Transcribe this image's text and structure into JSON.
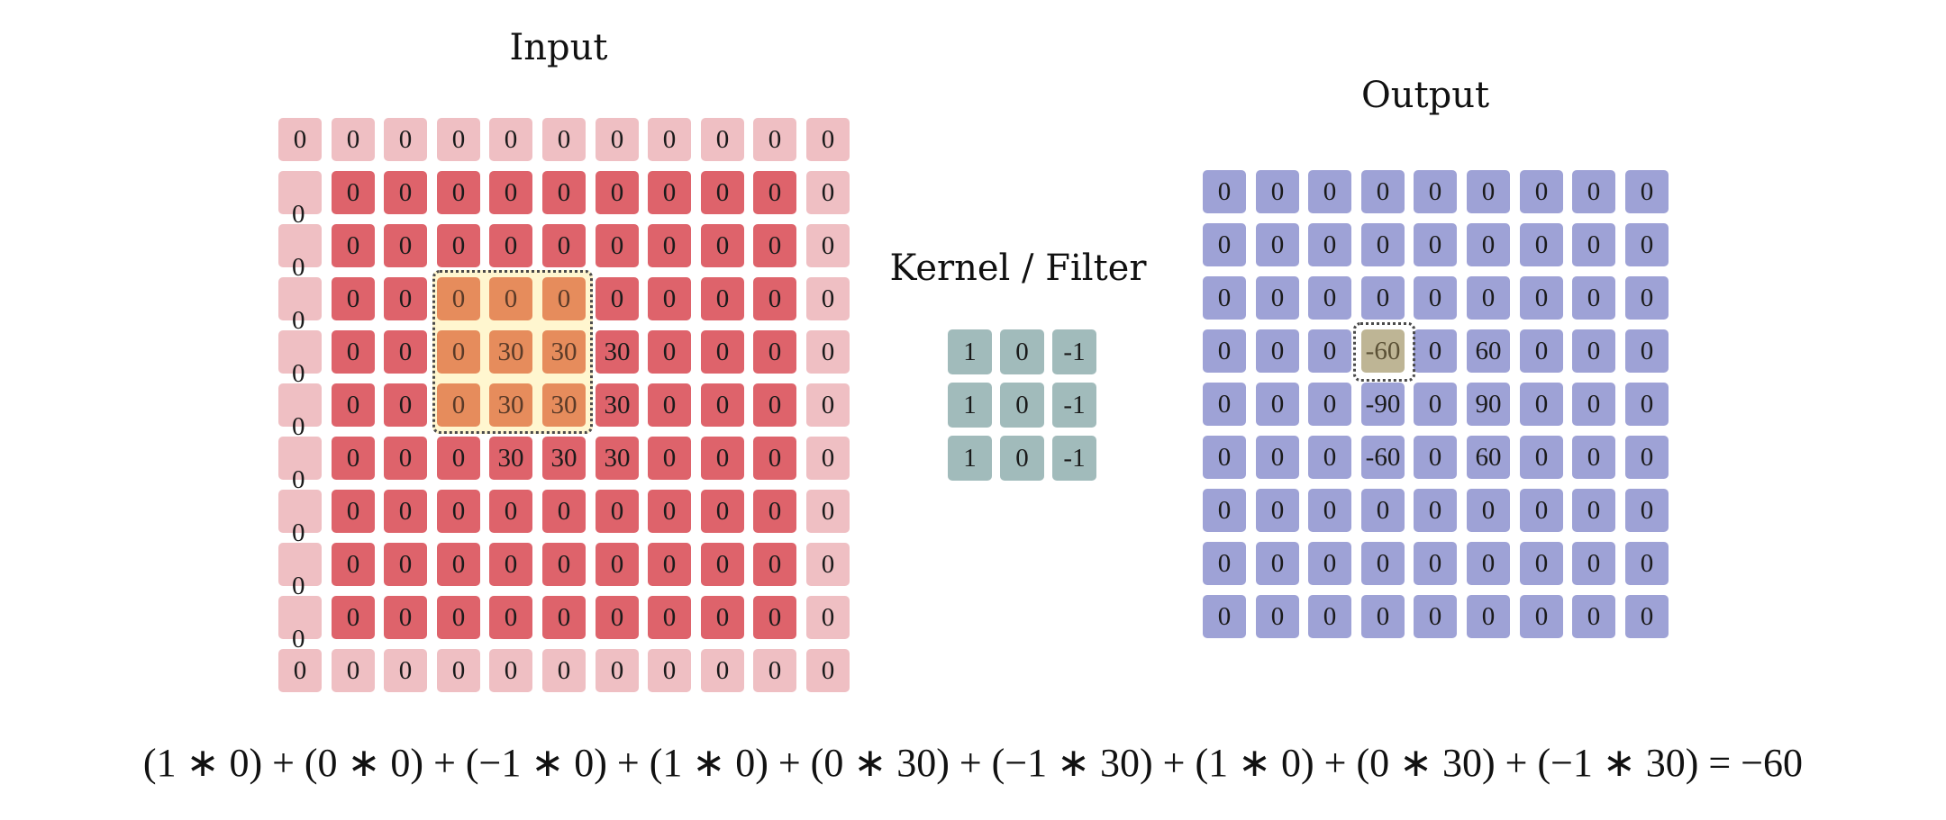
{
  "input": {
    "title": "Input",
    "matrix": [
      [
        "0",
        "0",
        "0",
        "0",
        "0",
        "0",
        "0",
        "0",
        "0",
        "0",
        "0"
      ],
      [
        "",
        "0",
        "0",
        "0",
        "0",
        "0",
        "0",
        "0",
        "0",
        "0",
        "0"
      ],
      [
        "",
        "0",
        "0",
        "0",
        "0",
        "0",
        "0",
        "0",
        "0",
        "0",
        "0"
      ],
      [
        "",
        "0",
        "0",
        "0",
        "0",
        "0",
        "0",
        "0",
        "0",
        "0",
        "0"
      ],
      [
        "",
        "0",
        "0",
        "0",
        "30",
        "30",
        "30",
        "0",
        "0",
        "0",
        "0"
      ],
      [
        "",
        "0",
        "0",
        "0",
        "30",
        "30",
        "30",
        "0",
        "0",
        "0",
        "0"
      ],
      [
        "",
        "0",
        "0",
        "0",
        "30",
        "30",
        "30",
        "0",
        "0",
        "0",
        "0"
      ],
      [
        "",
        "0",
        "0",
        "0",
        "0",
        "0",
        "0",
        "0",
        "0",
        "0",
        "0"
      ],
      [
        "",
        "0",
        "0",
        "0",
        "0",
        "0",
        "0",
        "0",
        "0",
        "0",
        "0"
      ],
      [
        "",
        "0",
        "0",
        "0",
        "0",
        "0",
        "0",
        "0",
        "0",
        "0",
        "0"
      ],
      [
        "0",
        "0",
        "0",
        "0",
        "0",
        "0",
        "0",
        "0",
        "0",
        "0",
        "0"
      ]
    ],
    "left_column_zeros": [
      "0",
      "0",
      "0",
      "0",
      "0",
      "0",
      "0",
      "0",
      "0"
    ],
    "highlight_window": {
      "row_start": 3,
      "col_start": 3,
      "size": 3
    }
  },
  "kernel": {
    "title": "Kernel / Filter",
    "matrix": [
      [
        "1",
        "0",
        "-1"
      ],
      [
        "1",
        "0",
        "-1"
      ],
      [
        "1",
        "0",
        "-1"
      ]
    ]
  },
  "output": {
    "title": "Output",
    "matrix": [
      [
        "0",
        "0",
        "0",
        "0",
        "0",
        "0",
        "0",
        "0",
        "0"
      ],
      [
        "0",
        "0",
        "0",
        "0",
        "0",
        "0",
        "0",
        "0",
        "0"
      ],
      [
        "0",
        "0",
        "0",
        "0",
        "0",
        "0",
        "0",
        "0",
        "0"
      ],
      [
        "0",
        "0",
        "0",
        "-60",
        "0",
        "60",
        "0",
        "0",
        "0"
      ],
      [
        "0",
        "0",
        "0",
        "-90",
        "0",
        "90",
        "0",
        "0",
        "0"
      ],
      [
        "0",
        "0",
        "0",
        "-60",
        "0",
        "60",
        "0",
        "0",
        "0"
      ],
      [
        "0",
        "0",
        "0",
        "0",
        "0",
        "0",
        "0",
        "0",
        "0"
      ],
      [
        "0",
        "0",
        "0",
        "0",
        "0",
        "0",
        "0",
        "0",
        "0"
      ],
      [
        "0",
        "0",
        "0",
        "0",
        "0",
        "0",
        "0",
        "0",
        "0"
      ]
    ],
    "highlight_cell": {
      "row": 3,
      "col": 3
    }
  },
  "equation": "(1 ∗ 0) + (0 ∗ 0) + (−1 ∗ 0) + (1 ∗ 0) + (0 ∗ 30) + (−1 ∗ 30) + (1 ∗ 0) + (0 ∗ 30) + (−1 ∗ 30) = −60",
  "colors": {
    "input_padding": "#efbfc3",
    "input_cell": "#de636b",
    "input_window": "#e68c5c",
    "window_background": "#fff6cf",
    "kernel_cell": "#a1bbbb",
    "output_cell": "#9ea2d6",
    "output_highlight": "#beb595"
  }
}
